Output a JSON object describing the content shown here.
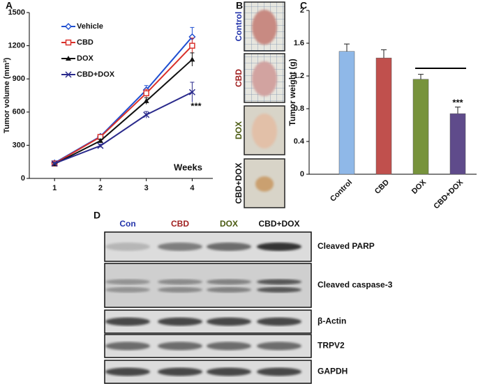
{
  "chart_data": [
    {
      "type": "line",
      "panel_label": "A",
      "y_label": "Tumor volume (mm³)",
      "x_label": "Weeks",
      "x": [
        1,
        2,
        3,
        4
      ],
      "xlim": [
        0.45,
        4.45
      ],
      "xticks": [
        1,
        2,
        3,
        4
      ],
      "ylim": [
        0,
        1500
      ],
      "yticks": [
        0,
        300,
        600,
        900,
        1200,
        1500
      ],
      "series": [
        {
          "name": "Vehicle",
          "color": "#1f4fd1",
          "marker": "diamond",
          "values": [
            140,
            380,
            800,
            1280
          ],
          "errors": [
            10,
            15,
            40,
            85
          ]
        },
        {
          "name": "CBD",
          "color": "#d9302a",
          "marker": "square",
          "values": [
            135,
            375,
            770,
            1200
          ],
          "errors": [
            10,
            15,
            35,
            70
          ]
        },
        {
          "name": "DOX",
          "color": "#111111",
          "marker": "triangle",
          "values": [
            130,
            340,
            700,
            1075
          ],
          "errors": [
            10,
            15,
            30,
            60
          ]
        },
        {
          "name": "CBD+DOX",
          "color": "#2a2a8c",
          "marker": "x",
          "values": [
            135,
            295,
            575,
            780
          ],
          "errors": [
            10,
            15,
            30,
            90
          ]
        }
      ],
      "annotation": "***"
    },
    {
      "type": "bar",
      "panel_label": "C",
      "y_label": "Tumor weight (g)",
      "categories": [
        "Control",
        "CBD",
        "DOX",
        "CBD+DOX"
      ],
      "values": [
        1.5,
        1.42,
        1.16,
        0.74
      ],
      "errors": [
        0.09,
        0.1,
        0.06,
        0.08
      ],
      "colors": [
        "#8fb8e8",
        "#c0504d",
        "#77933c",
        "#5f4b8b"
      ],
      "ylim": [
        0,
        2
      ],
      "yticks": [
        0,
        0.4,
        0.8,
        1.2,
        1.6,
        2
      ],
      "annotation": "***"
    }
  ],
  "photos": {
    "panel_label": "B",
    "labels": [
      {
        "text": "Control",
        "color": "#2233aa"
      },
      {
        "text": "CBD",
        "color": "#a02020"
      },
      {
        "text": "DOX",
        "color": "#4a5a10"
      },
      {
        "text": "CBD+DOX",
        "color": "#111111"
      }
    ]
  },
  "blot": {
    "panel_label": "D",
    "lanes": [
      {
        "text": "Con",
        "color": "#2233aa"
      },
      {
        "text": "CBD",
        "color": "#a02020"
      },
      {
        "text": "DOX",
        "color": "#4a5a10"
      },
      {
        "text": "CBD+DOX",
        "color": "#111111"
      }
    ],
    "rows": [
      "Cleaved PARP",
      "Cleaved caspase-3",
      "β-Actin",
      "TRPV2",
      "GAPDH"
    ]
  }
}
